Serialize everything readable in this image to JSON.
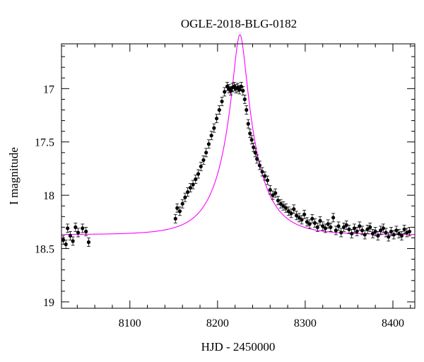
{
  "chart_data": {
    "type": "scatter",
    "title": "OGLE-2018-BLG-0182",
    "xlabel": "HJD - 2450000",
    "ylabel": "I magnitude",
    "xlim": [
      8022,
      8425
    ],
    "ylim": [
      19.06,
      16.58
    ],
    "y_inverted": true,
    "x_ticks": [
      8100,
      8200,
      8300,
      8400
    ],
    "y_ticks": [
      17,
      17.5,
      18,
      18.5,
      19
    ],
    "y_tick_labels": [
      "17",
      "17.5",
      "18",
      "18.5",
      "19"
    ],
    "grid": false,
    "legend": "none",
    "model_color": "#ff00ff",
    "point_color": "#000000",
    "model": {
      "t0": 8225.5,
      "tE": 38,
      "u0": 0.18,
      "baseline": 18.37,
      "fs": 1
    },
    "series": [
      {
        "name": "",
        "x": [
          8024,
          8027,
          8029,
          8032,
          8035,
          8038,
          8041,
          8046,
          8050,
          8053,
          8152,
          8154,
          8157,
          8160,
          8163,
          8166,
          8169,
          8172,
          8175,
          8178,
          8181,
          8184,
          8187,
          8190,
          8193,
          8196,
          8199,
          8202,
          8205,
          8208,
          8211,
          8213,
          8215,
          8217,
          8219,
          8221,
          8223,
          8225,
          8227,
          8229,
          8231,
          8233,
          8235,
          8237,
          8239,
          8241,
          8243,
          8245,
          8248,
          8251,
          8254,
          8257,
          8260,
          8263,
          8266,
          8269,
          8272,
          8275,
          8278,
          8281,
          8284,
          8287,
          8290,
          8293,
          8296,
          8299,
          8302,
          8305,
          8308,
          8311,
          8314,
          8317,
          8320,
          8323,
          8326,
          8329,
          8332,
          8335,
          8338,
          8341,
          8344,
          8347,
          8350,
          8353,
          8356,
          8359,
          8362,
          8365,
          8368,
          8371,
          8374,
          8377,
          8380,
          8383,
          8386,
          8389,
          8392,
          8395,
          8398,
          8401,
          8404,
          8407,
          8410,
          8413,
          8416,
          8419
        ],
        "y": [
          18.42,
          18.46,
          18.31,
          18.38,
          18.43,
          18.3,
          18.35,
          18.31,
          18.34,
          18.44,
          18.22,
          18.12,
          18.15,
          18.08,
          18.02,
          17.97,
          17.93,
          17.9,
          17.85,
          17.8,
          17.73,
          17.67,
          17.6,
          17.52,
          17.44,
          17.37,
          17.28,
          17.2,
          17.12,
          17.03,
          16.98,
          17.0,
          17.02,
          16.99,
          16.98,
          17.0,
          16.99,
          17.01,
          16.98,
          17.02,
          17.1,
          17.2,
          17.33,
          17.42,
          17.48,
          17.55,
          17.6,
          17.66,
          17.72,
          17.78,
          17.82,
          17.86,
          17.95,
          18.0,
          17.98,
          18.05,
          18.08,
          18.1,
          18.12,
          18.15,
          18.17,
          18.13,
          18.19,
          18.21,
          18.23,
          18.18,
          18.25,
          18.27,
          18.22,
          18.26,
          18.3,
          18.24,
          18.29,
          18.31,
          18.27,
          18.3,
          18.21,
          18.33,
          18.29,
          18.35,
          18.3,
          18.28,
          18.32,
          18.36,
          18.31,
          18.34,
          18.29,
          18.33,
          18.37,
          18.32,
          18.3,
          18.36,
          18.34,
          18.38,
          18.33,
          18.31,
          18.35,
          18.39,
          18.34,
          18.37,
          18.33,
          18.36,
          18.38,
          18.32,
          18.35,
          18.34
        ]
      }
    ]
  }
}
